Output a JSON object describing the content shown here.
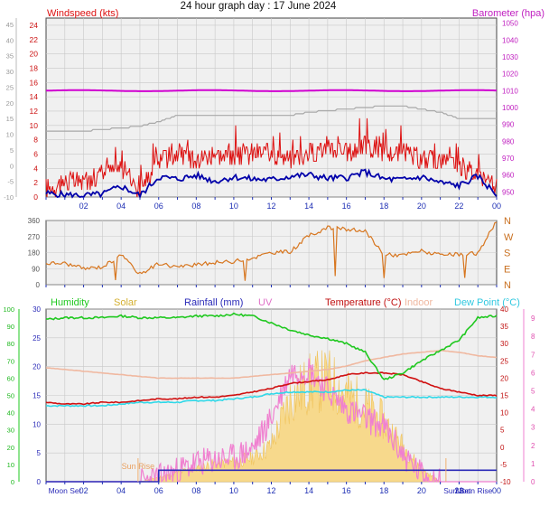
{
  "title": "24 hour graph day : 17 June 2024",
  "colors": {
    "plot_bg": "#f0f0f0",
    "grid": "#c8c8c8",
    "hour_tick": "#1e2fb4",
    "windspeed": "#dd1111",
    "windavg": "#0000aa",
    "barometer": "#d000d0",
    "baro_axis": "#c020c0",
    "winddir": "#d7761f",
    "humidity": "#1fc81f",
    "solar": "#f0c35a",
    "solar_fill": "#f7d98c",
    "rain": "#2a2ab8",
    "uv": "#f080d0",
    "temperature": "#d01010",
    "indoor": "#f0b8a0",
    "dewpoint": "#30d8e8",
    "grey_trace": "#a8a8a8",
    "sun_marker": "#f0b070",
    "axis_text": "#1a1a1a"
  },
  "hour_labels": [
    "02",
    "04",
    "06",
    "08",
    "10",
    "12",
    "14",
    "16",
    "18",
    "20",
    "22",
    "00"
  ],
  "chart_data": [
    {
      "type": "line",
      "panel": "wind",
      "title": "24 hour graph day : 17 June 2024",
      "x": [
        "00",
        "01",
        "02",
        "03",
        "04",
        "05",
        "06",
        "07",
        "08",
        "09",
        "10",
        "11",
        "12",
        "13",
        "14",
        "15",
        "16",
        "17",
        "18",
        "19",
        "20",
        "21",
        "22",
        "23",
        "00"
      ],
      "left_axis": {
        "label": "Windspeed (kts)",
        "ticks": [
          "0",
          "2",
          "4",
          "6",
          "8",
          "10",
          "12",
          "14",
          "16",
          "18",
          "20",
          "22",
          "24"
        ],
        "ylim": [
          0,
          25
        ]
      },
      "outer_left_ticks": [
        "-10",
        "-5",
        "0",
        "5",
        "10",
        "15",
        "20",
        "25",
        "30",
        "35",
        "40",
        "45"
      ],
      "right_axis": {
        "label": "Barometer (hpa)",
        "ticks": [
          "950",
          "960",
          "970",
          "980",
          "990",
          "1000",
          "1010",
          "1020",
          "1030",
          "1040",
          "1050"
        ],
        "ylim": [
          947,
          1053
        ]
      },
      "series": [
        {
          "name": "Windspeed (kts)",
          "axis": "left",
          "values": [
            1,
            2,
            2,
            3,
            4,
            1,
            5,
            6,
            5,
            6,
            5,
            6,
            6,
            5,
            6,
            7,
            6,
            7,
            6,
            6,
            5,
            5,
            4,
            3,
            1
          ],
          "gust_peaks": [
            2,
            3,
            3,
            5,
            8,
            6,
            9,
            10,
            9,
            10,
            10,
            10,
            10,
            9,
            10,
            10,
            9,
            12,
            10,
            10,
            9,
            8,
            8,
            7,
            3
          ]
        },
        {
          "name": "Wind average",
          "axis": "left",
          "values": [
            0.5,
            0.3,
            0.2,
            0.4,
            1.5,
            0.2,
            2.8,
            2.5,
            3,
            2.2,
            2.8,
            2.5,
            2.4,
            2.9,
            3.1,
            2.6,
            2.7,
            3.5,
            2.5,
            2.4,
            2.8,
            2.0,
            1.6,
            2.9,
            0.3
          ]
        },
        {
          "name": "Barometer (hpa)",
          "axis": "right",
          "values": [
            1010,
            1010,
            1010,
            1010,
            1010,
            1010,
            1010,
            1010,
            1010,
            1010,
            1010,
            1010,
            1010,
            1010,
            1010,
            1010,
            1010,
            1010,
            1010,
            1010,
            1010,
            1010,
            1010,
            1010,
            1010
          ]
        },
        {
          "name": "Outer scale trace",
          "axis": "outer",
          "values": [
            11,
            11,
            11,
            11.5,
            12,
            12.5,
            14,
            16,
            16,
            16,
            16,
            16,
            16,
            16,
            17,
            17.5,
            18,
            18.5,
            19,
            19,
            18,
            17,
            15,
            15,
            15
          ]
        }
      ]
    },
    {
      "type": "line",
      "panel": "direction",
      "x": [
        "00",
        "01",
        "02",
        "03",
        "04",
        "05",
        "06",
        "07",
        "08",
        "09",
        "10",
        "11",
        "12",
        "13",
        "14",
        "15",
        "16",
        "17",
        "18",
        "19",
        "20",
        "21",
        "22",
        "23",
        "00"
      ],
      "left_axis": {
        "ticks": [
          "0",
          "90",
          "180",
          "270",
          "360"
        ],
        "ylim": [
          0,
          360
        ]
      },
      "right_axis": {
        "ticks": [
          "N",
          "E",
          "S",
          "W",
          "N"
        ]
      },
      "series": [
        {
          "name": "Wind direction",
          "values": [
            120,
            120,
            90,
            100,
            165,
            60,
            120,
            100,
            110,
            125,
            130,
            150,
            180,
            185,
            275,
            320,
            310,
            300,
            170,
            165,
            190,
            165,
            170,
            175,
            360
          ]
        }
      ]
    },
    {
      "type": "line",
      "panel": "multi",
      "x": [
        "00",
        "01",
        "02",
        "03",
        "04",
        "05",
        "06",
        "07",
        "08",
        "09",
        "10",
        "11",
        "12",
        "13",
        "14",
        "15",
        "16",
        "17",
        "18",
        "19",
        "20",
        "21",
        "22",
        "23",
        "00"
      ],
      "legend": [
        "Humidity",
        "Solar",
        "Rainfall (mm)",
        "UV",
        "Temperature (°C)",
        "Indoor",
        "Dew Point (°C)"
      ],
      "axes": {
        "humidity": {
          "ticks": [
            "0",
            "10",
            "20",
            "30",
            "40",
            "50",
            "60",
            "70",
            "80",
            "90",
            "100"
          ],
          "ylim": [
            0,
            100
          ]
        },
        "rain": {
          "ticks": [
            "0",
            "5",
            "10",
            "15",
            "20",
            "25",
            "30"
          ],
          "ylim": [
            0,
            30
          ]
        },
        "temperature": {
          "ticks": [
            "-10",
            "-5",
            "0",
            "5",
            "10",
            "15",
            "20",
            "25",
            "30",
            "35",
            "40"
          ],
          "ylim": [
            -10,
            40
          ]
        },
        "uv": {
          "ticks": [
            "0",
            "1",
            "2",
            "3",
            "4",
            "5",
            "6",
            "7",
            "8",
            "9"
          ],
          "ylim": [
            0,
            9.5
          ]
        }
      },
      "series": [
        {
          "name": "Humidity",
          "axis": "humidity",
          "values": [
            94,
            95,
            95,
            95,
            96,
            95,
            95,
            95,
            96,
            96,
            97,
            96,
            92,
            88,
            85,
            83,
            80,
            75,
            59,
            63,
            70,
            76,
            82,
            95,
            96
          ]
        },
        {
          "name": "Temperature (°C)",
          "axis": "temperature",
          "values": [
            13,
            12.5,
            12.5,
            13,
            13,
            13.5,
            14,
            14,
            14.5,
            14.5,
            15,
            16,
            17,
            18.5,
            19,
            19.5,
            21,
            21.5,
            21.5,
            21,
            19,
            17,
            16,
            15,
            15
          ]
        },
        {
          "name": "Dew Point (°C)",
          "axis": "temperature",
          "values": [
            12,
            12,
            12,
            12,
            12.5,
            13,
            13,
            13,
            13.5,
            13.5,
            14,
            14.5,
            15.5,
            16,
            16,
            16,
            16.5,
            16.5,
            14.5,
            14.5,
            14.5,
            14.5,
            14.5,
            14.5,
            14.5
          ]
        },
        {
          "name": "Indoor",
          "axis": "temperature",
          "values": [
            23,
            22.5,
            22,
            21.5,
            21,
            20.5,
            20,
            20,
            20,
            20,
            20,
            20.5,
            21,
            21.5,
            22,
            22.5,
            23.5,
            25,
            26,
            27,
            27.5,
            28,
            27.5,
            26.5,
            26
          ]
        },
        {
          "name": "Solar",
          "axis": "uv",
          "values": [
            0,
            0,
            0,
            0,
            0,
            0,
            0.3,
            0.6,
            0.9,
            1.2,
            1.3,
            1.6,
            2.4,
            5.5,
            6.5,
            6.8,
            5.8,
            5.0,
            4.0,
            2.4,
            0.8,
            0,
            0,
            0,
            0
          ]
        },
        {
          "name": "UV",
          "axis": "uv",
          "values": [
            0,
            0,
            0,
            0,
            0,
            0,
            0.2,
            0.6,
            1.0,
            1.2,
            1.3,
            1.8,
            3.5,
            6.0,
            6.2,
            5.0,
            4.0,
            3.5,
            3.0,
            1.5,
            0.4,
            0,
            0,
            0,
            0
          ]
        },
        {
          "name": "Rainfall (mm)",
          "axis": "rain",
          "values": [
            0,
            0,
            0,
            0,
            0,
            0,
            2,
            2,
            2,
            2,
            2,
            2,
            2,
            2,
            2,
            2,
            2,
            2,
            2,
            2,
            2,
            2,
            2,
            2,
            2
          ]
        }
      ],
      "annotations": [
        "Sun Rise",
        "Sun Set",
        "Moon Set",
        "Moon Rise"
      ]
    }
  ]
}
